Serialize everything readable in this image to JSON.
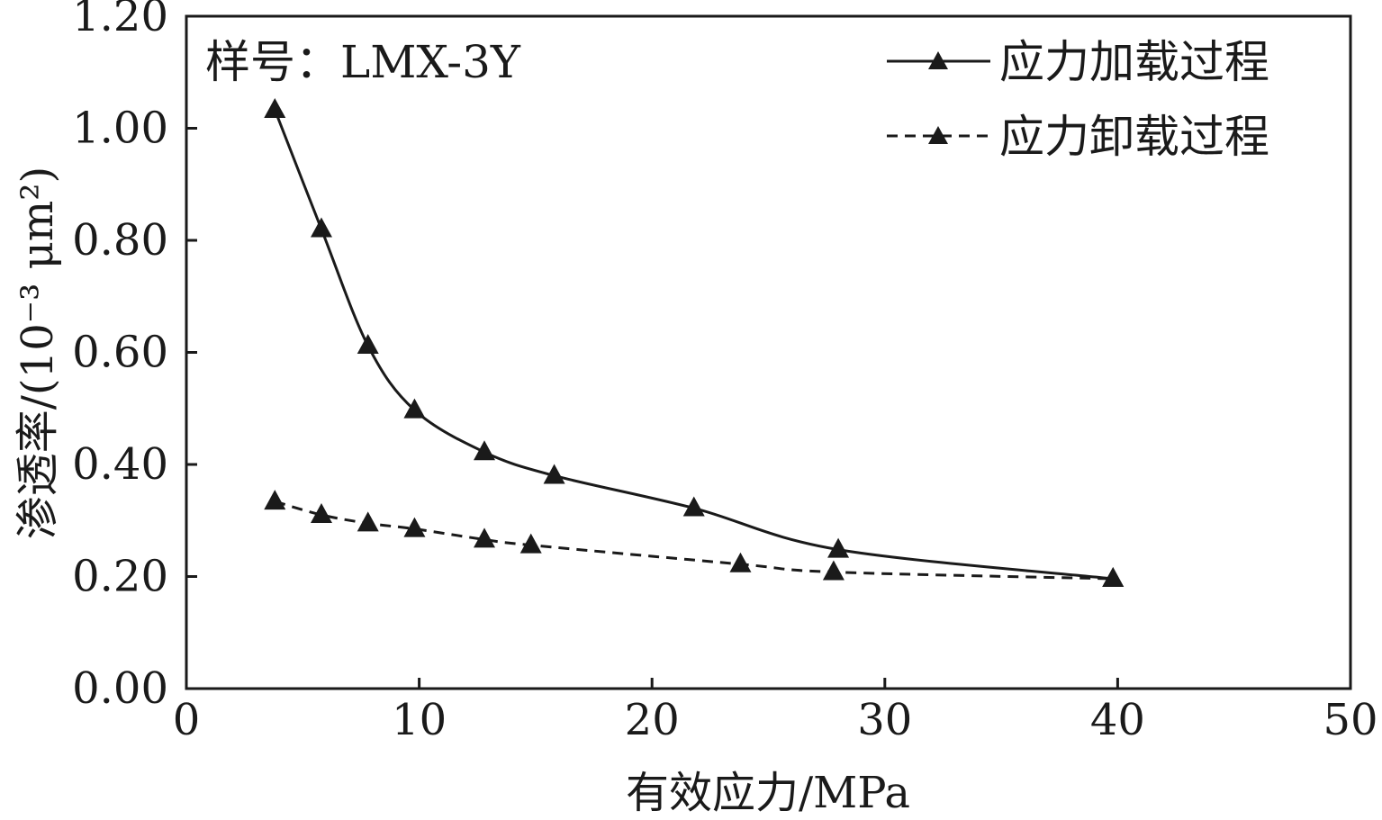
{
  "chart_data": {
    "type": "line",
    "sample_label": "样号：LMX-3Y",
    "xlabel": "有效应力/MPa",
    "ylabel": "渗透率/(10⁻³ μm²)",
    "xlim": [
      0,
      50
    ],
    "ylim": [
      0,
      1.2
    ],
    "x_ticks": [
      "0",
      "10",
      "20",
      "30",
      "40",
      "50"
    ],
    "y_ticks": [
      "0.00",
      "0.20",
      "0.40",
      "0.60",
      "0.80",
      "1.00",
      "1.20"
    ],
    "legend_position": "top-right",
    "grid": false,
    "series": [
      {
        "name": "应力加载过程",
        "line_style": "solid",
        "marker": "triangle",
        "x": [
          3.8,
          5.8,
          7.8,
          9.8,
          12.8,
          15.8,
          21.8,
          28.0,
          39.8
        ],
        "y": [
          1.033,
          0.82,
          0.612,
          0.497,
          0.422,
          0.38,
          0.322,
          0.248,
          0.196
        ]
      },
      {
        "name": "应力卸载过程",
        "line_style": "dashed",
        "marker": "triangle",
        "x": [
          3.8,
          5.8,
          7.8,
          9.8,
          12.8,
          14.8,
          23.8,
          27.8,
          39.8
        ],
        "y": [
          0.334,
          0.31,
          0.295,
          0.285,
          0.266,
          0.256,
          0.222,
          0.208,
          0.196
        ]
      }
    ],
    "colors": {
      "line": "#1a1a1a",
      "marker": "#1a1a1a",
      "axis": "#1a1a1a"
    }
  }
}
